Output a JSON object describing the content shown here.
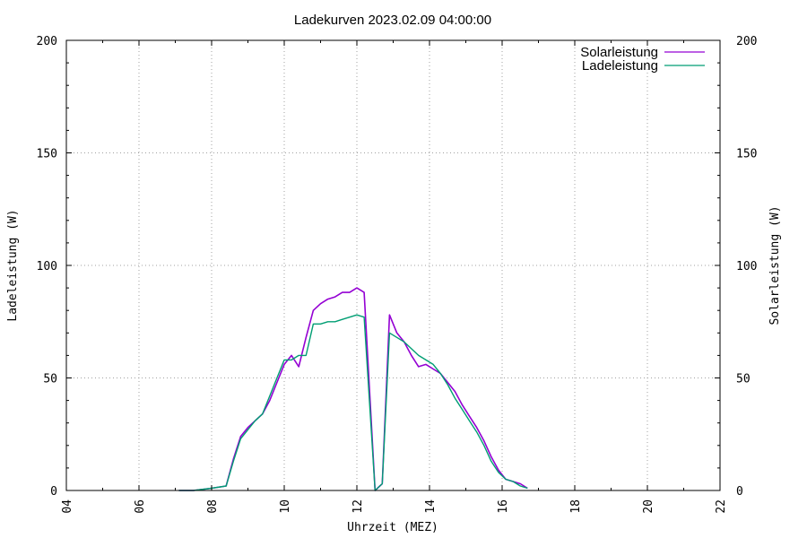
{
  "chart_data": {
    "type": "line",
    "title": "Ladekurven 2023.02.09 04:00:00",
    "xlabel": "Uhrzeit (MEZ)",
    "ylabel_left": "Ladeleistung (W)",
    "ylabel_right": "Solarleistung (W)",
    "xlim": [
      4,
      22
    ],
    "ylim": [
      0,
      200
    ],
    "x_ticks": [
      "04",
      "06",
      "08",
      "10",
      "12",
      "14",
      "16",
      "18",
      "20",
      "22"
    ],
    "y_ticks": [
      "0",
      "50",
      "100",
      "150",
      "200"
    ],
    "grid": true,
    "legend_position": "top-right",
    "series": [
      {
        "name": "Solarleistung",
        "color": "#9400d3",
        "x": [
          7.1,
          7.5,
          8.0,
          8.4,
          8.6,
          8.8,
          9.0,
          9.2,
          9.4,
          9.6,
          9.8,
          10.0,
          10.2,
          10.4,
          10.6,
          10.8,
          11.0,
          11.2,
          11.4,
          11.6,
          11.8,
          12.0,
          12.2,
          12.5,
          12.7,
          12.9,
          13.1,
          13.3,
          13.5,
          13.7,
          13.9,
          14.1,
          14.3,
          14.5,
          14.7,
          14.9,
          15.1,
          15.3,
          15.5,
          15.7,
          15.9,
          16.1,
          16.3,
          16.5,
          16.7
        ],
        "values": [
          0,
          0,
          1,
          2,
          14,
          24,
          28,
          31,
          34,
          40,
          48,
          56,
          60,
          55,
          68,
          80,
          83,
          85,
          86,
          88,
          88,
          90,
          88,
          0,
          3,
          78,
          70,
          66,
          60,
          55,
          56,
          54,
          52,
          48,
          44,
          38,
          33,
          28,
          22,
          15,
          9,
          5,
          4,
          3,
          1
        ]
      },
      {
        "name": "Ladeleistung",
        "color": "#009e73",
        "x": [
          7.1,
          7.5,
          8.0,
          8.4,
          8.6,
          8.8,
          9.0,
          9.2,
          9.4,
          9.6,
          9.8,
          10.0,
          10.2,
          10.4,
          10.6,
          10.8,
          11.0,
          11.2,
          11.4,
          11.6,
          11.8,
          12.0,
          12.2,
          12.5,
          12.7,
          12.9,
          13.1,
          13.3,
          13.5,
          13.7,
          13.9,
          14.1,
          14.3,
          14.5,
          14.7,
          14.9,
          15.1,
          15.3,
          15.5,
          15.7,
          15.9,
          16.1,
          16.3,
          16.5,
          16.7
        ],
        "values": [
          0,
          0,
          1,
          2,
          13,
          23,
          27,
          31,
          34,
          42,
          50,
          58,
          58,
          60,
          60,
          74,
          74,
          75,
          75,
          76,
          77,
          78,
          77,
          0,
          3,
          70,
          68,
          66,
          63,
          60,
          58,
          56,
          52,
          47,
          41,
          36,
          31,
          26,
          20,
          13,
          8,
          5,
          4,
          2,
          1
        ]
      }
    ]
  }
}
